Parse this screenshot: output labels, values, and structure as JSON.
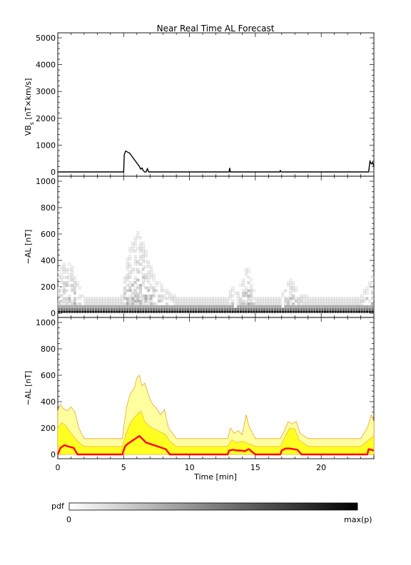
{
  "chart_data": [
    {
      "type": "line",
      "title": "Near Real Time AL Forecast",
      "ylabel_main": "VB",
      "ylabel_sub": "s",
      "ylabel_units": " [nT×km/s]",
      "ylim": [
        0,
        5000
      ],
      "yticks": [
        0,
        1000,
        2000,
        3000,
        4000,
        5000
      ],
      "xlim": [
        0,
        24
      ],
      "series": [
        {
          "x": [
            0,
            5.0,
            5.05,
            5.15,
            5.3,
            5.45,
            5.6,
            5.75,
            5.9,
            6.05,
            6.2,
            6.3,
            6.4,
            6.5,
            6.6,
            6.7,
            6.8,
            6.9,
            7.0,
            7.1,
            7.15,
            13.0,
            13.05,
            13.1,
            13.15,
            16.85,
            16.9,
            16.95,
            23.6,
            23.7,
            23.8,
            23.9,
            24.0
          ],
          "y": [
            0,
            0,
            650,
            780,
            740,
            700,
            600,
            500,
            400,
            300,
            200,
            100,
            150,
            40,
            0,
            0,
            120,
            0,
            0,
            0,
            0,
            0,
            150,
            0,
            0,
            0,
            50,
            0,
            0,
            400,
            300,
            350,
            200
          ]
        }
      ]
    },
    {
      "type": "heatmap",
      "ylabel": "−AL [nT]",
      "ylim": [
        0,
        1000
      ],
      "yticks": [
        0,
        200,
        400,
        600,
        800,
        1000
      ],
      "xlim": [
        0,
        24
      ],
      "color_scale": "white-to-black",
      "envelope": {
        "x": [
          0,
          0.5,
          1.0,
          1.5,
          2.0,
          3,
          4,
          4.9,
          5.2,
          5.5,
          6.0,
          6.3,
          6.6,
          7.0,
          7.5,
          8.0,
          8.5,
          9,
          10,
          11,
          12,
          12.9,
          13.2,
          13.5,
          14.0,
          14.4,
          15,
          16,
          16.9,
          17.3,
          17.8,
          18.2,
          19,
          20,
          21,
          22,
          23,
          23.6,
          24
        ],
        "y": [
          300,
          400,
          380,
          250,
          120,
          120,
          120,
          120,
          380,
          480,
          600,
          630,
          520,
          380,
          240,
          200,
          160,
          120,
          120,
          120,
          120,
          120,
          200,
          150,
          220,
          380,
          120,
          120,
          120,
          200,
          270,
          150,
          120,
          120,
          120,
          120,
          120,
          220,
          300
        ]
      }
    },
    {
      "type": "area",
      "ylabel": "−AL [nT]",
      "ylim": [
        0,
        1000
      ],
      "yticks": [
        0,
        200,
        400,
        600,
        800,
        1000
      ],
      "xlabel": "Time [min]",
      "xlim": [
        0,
        24
      ],
      "xticks": [
        0,
        5,
        10,
        15,
        20
      ],
      "colors": {
        "outer_band": "#FFFFA0",
        "inner_band": "#FFFF22",
        "band_edge": "#F0A030",
        "median": "#FF0000"
      },
      "series": [
        {
          "name": "upper",
          "x": [
            0,
            0.2,
            0.4,
            0.7,
            1.0,
            1.3,
            1.6,
            2.0,
            3,
            4,
            4.9,
            5.2,
            5.5,
            5.8,
            6.0,
            6.2,
            6.4,
            6.6,
            6.8,
            7.0,
            7.2,
            7.5,
            7.8,
            8.1,
            8.4,
            9,
            10,
            11,
            12,
            12.9,
            13.1,
            13.4,
            13.7,
            14.0,
            14.3,
            14.5,
            15,
            16,
            16.9,
            17.2,
            17.5,
            17.8,
            18.1,
            18.4,
            19,
            20,
            21,
            22,
            23,
            23.5,
            23.8,
            24
          ],
          "y": [
            330,
            380,
            350,
            330,
            360,
            320,
            200,
            120,
            120,
            120,
            120,
            350,
            460,
            500,
            580,
            600,
            520,
            540,
            480,
            420,
            380,
            350,
            300,
            340,
            200,
            120,
            120,
            120,
            120,
            120,
            200,
            160,
            180,
            150,
            300,
            220,
            120,
            120,
            120,
            180,
            250,
            230,
            250,
            160,
            120,
            120,
            120,
            120,
            120,
            200,
            300,
            250
          ]
        },
        {
          "name": "mid_upper",
          "x": [
            0,
            0.3,
            0.6,
            1.0,
            1.5,
            2.0,
            3,
            4,
            4.9,
            5.2,
            5.5,
            5.8,
            6.0,
            6.3,
            6.6,
            7.0,
            7.4,
            7.8,
            8.2,
            8.5,
            9,
            10,
            11,
            12,
            12.9,
            13.2,
            13.6,
            14.0,
            14.3,
            15,
            16,
            16.9,
            17.2,
            17.6,
            18.0,
            18.3,
            19,
            20,
            21,
            22,
            23,
            23.6,
            24
          ],
          "y": [
            200,
            240,
            220,
            160,
            100,
            60,
            60,
            60,
            60,
            160,
            240,
            280,
            300,
            330,
            250,
            210,
            190,
            170,
            150,
            100,
            60,
            60,
            60,
            60,
            60,
            110,
            90,
            100,
            90,
            60,
            60,
            60,
            120,
            200,
            190,
            110,
            60,
            60,
            60,
            60,
            60,
            110,
            140
          ]
        },
        {
          "name": "median",
          "x": [
            0,
            0.2,
            0.5,
            0.8,
            1.2,
            1.5,
            2.0,
            4.9,
            5.1,
            5.3,
            5.6,
            5.9,
            6.2,
            6.4,
            6.7,
            7.0,
            7.3,
            7.6,
            7.9,
            8.2,
            8.5,
            9.0,
            12.9,
            13.0,
            13.3,
            13.6,
            13.9,
            14.2,
            14.5,
            15.0,
            16.9,
            17.0,
            17.3,
            17.6,
            17.9,
            18.2,
            18.5,
            23.5,
            23.6,
            23.8,
            24
          ],
          "y": [
            0,
            50,
            70,
            60,
            50,
            0,
            0,
            0,
            60,
            80,
            100,
            120,
            140,
            120,
            90,
            80,
            70,
            60,
            50,
            40,
            0,
            0,
            0,
            30,
            35,
            30,
            30,
            25,
            40,
            0,
            0,
            30,
            45,
            45,
            40,
            35,
            0,
            0,
            40,
            35,
            30
          ]
        }
      ]
    }
  ],
  "colorbar": {
    "label": "pdf",
    "min_label": "0",
    "max_label": "max(p)",
    "gradient": [
      "#FFFFFF",
      "#000000"
    ]
  }
}
